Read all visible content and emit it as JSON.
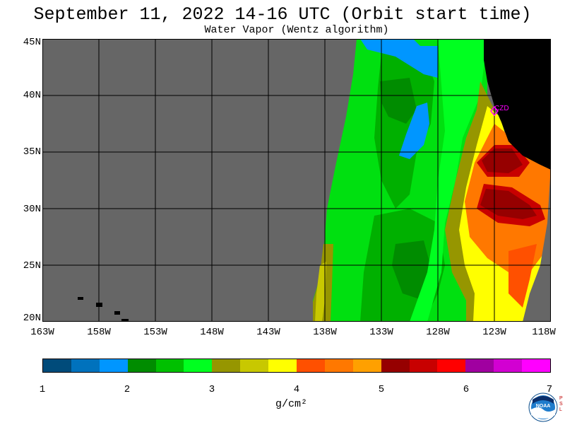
{
  "header": {
    "title": "September 11, 2022  14-16 UTC  (Orbit start time)",
    "subtitle": "Water Vapor (Wentz algorithm)"
  },
  "map": {
    "lat_labels": [
      "45N",
      "40N",
      "35N",
      "30N",
      "25N",
      "20N"
    ],
    "lon_labels": [
      "163W",
      "158W",
      "153W",
      "148W",
      "143W",
      "138W",
      "133W",
      "128W",
      "123W",
      "118W"
    ],
    "lat_range": [
      20,
      45
    ],
    "lon_range": [
      -163,
      -118
    ],
    "station_label": "CZD",
    "colors": {
      "no_data": "#666666",
      "land": "#000000",
      "grid": "#000000",
      "station": "#ff00ff"
    }
  },
  "colorbar": {
    "tick_labels": [
      "1",
      "2",
      "3",
      "4",
      "5",
      "6",
      "7"
    ],
    "colors": [
      "#004b7a",
      "#0072bd",
      "#0096ff",
      "#008c00",
      "#00c000",
      "#00ff20",
      "#969600",
      "#c8c800",
      "#ffff00",
      "#ff5000",
      "#ff7800",
      "#ffa000",
      "#960000",
      "#c80000",
      "#ff0000",
      "#a000a0",
      "#d200d2",
      "#ff00ff"
    ],
    "units": "g/cm²"
  },
  "logo": {
    "name": "NOAA",
    "side_text": "PSL"
  }
}
